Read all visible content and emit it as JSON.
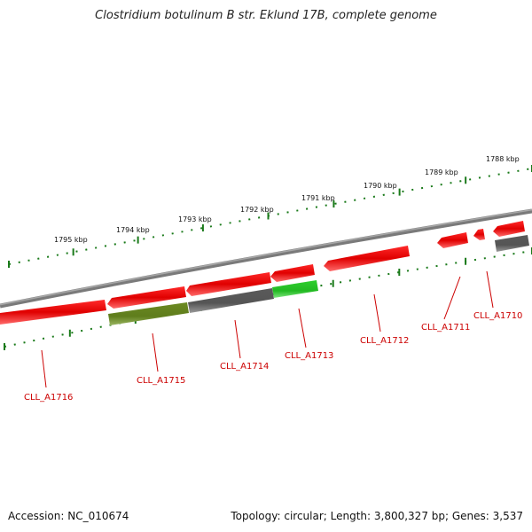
{
  "title": "Clostridium botulinum B str. Eklund 17B, complete genome",
  "footer": {
    "accession": "Accession: NC_010674",
    "summary": "Topology: circular; Length: 3,800,327 bp; Genes: 3,537"
  },
  "scale_labels": [
    "1795 kbp",
    "1794 kbp",
    "1793 kbp",
    "1792 kbp",
    "1791 kbp",
    "1790 kbp",
    "1789 kbp",
    "1788 kbp"
  ],
  "gene_labels": [
    "CLL_A1716",
    "CLL_A1715",
    "CLL_A1714",
    "CLL_A1713",
    "CLL_A1712",
    "CLL_A1711",
    "CLL_A1710"
  ],
  "colors": {
    "red_gene": "#e30000",
    "olive_gene": "#6b8e23",
    "grey_gene": "#666666",
    "green_gene": "#33cc33",
    "backbone": "#8a8a8a",
    "ticks": "#1a7a1a",
    "label": "#cc0000"
  }
}
